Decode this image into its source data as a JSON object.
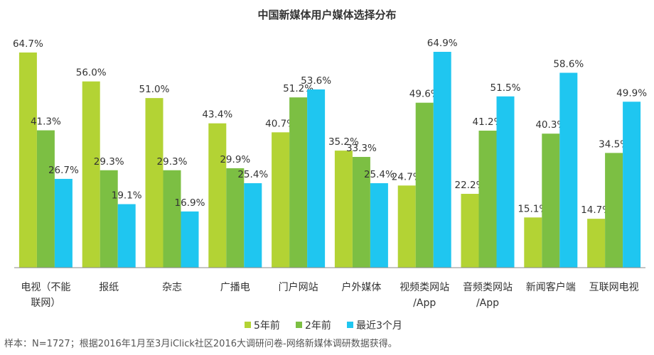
{
  "chart_data": {
    "type": "bar",
    "title": "中国新媒体用户媒体选择分布",
    "categories": [
      "电视（不能\n联网）",
      "报纸",
      "杂志",
      "广播电",
      "门户网站",
      "户外媒体",
      "视频类网站\n/App",
      "音频类网站\n/App",
      "新闻客户端",
      "互联网电视"
    ],
    "series": [
      {
        "name": "5年前",
        "color": "#b3d334",
        "values": [
          64.7,
          56.0,
          51.0,
          43.4,
          40.7,
          35.2,
          24.7,
          22.2,
          15.1,
          14.7
        ]
      },
      {
        "name": "2年前",
        "color": "#7cbf43",
        "values": [
          41.3,
          29.3,
          29.3,
          29.9,
          51.2,
          33.3,
          49.6,
          41.2,
          40.3,
          34.5
        ]
      },
      {
        "name": "最近3个月",
        "color": "#1fc6f0",
        "values": [
          26.7,
          19.1,
          16.9,
          25.4,
          53.6,
          25.4,
          64.9,
          51.5,
          58.6,
          49.9
        ]
      }
    ],
    "ylim": [
      0,
      70
    ],
    "value_suffix": "%",
    "grid": false,
    "legend_position": "bottom",
    "source_note": "样本：N=1727；根据2016年1月至3月iClick社区2016大调研问卷-网络新媒体调研数据获得。"
  }
}
